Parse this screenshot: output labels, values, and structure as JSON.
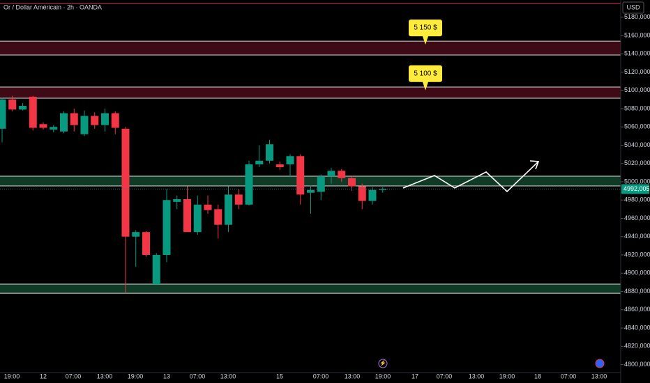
{
  "chart_data": {
    "type": "candlestick",
    "title": "Or / Dollar Américain · 2h · OANDA",
    "currency": "USD",
    "open": [
      5058,
      5090,
      5079,
      5093,
      5063,
      5057,
      5055,
      5075,
      5052,
      5072,
      5062,
      5075,
      5058,
      4940,
      4945,
      4888,
      4920,
      4978,
      4981,
      4945,
      4975,
      4970,
      4953,
      4986,
      4975,
      5019,
      5023,
      5019,
      5019,
      5028,
      4988,
      4989,
      5006,
      5012,
      5004,
      4995,
      4979,
      4991
    ],
    "high": [
      5092,
      5094,
      5086,
      5094,
      5065,
      5062,
      5077,
      5080,
      5078,
      5076,
      5080,
      5077,
      5060,
      4947,
      4946,
      4922,
      4992,
      4985,
      4995,
      4985,
      4985,
      4975,
      4995,
      4992,
      5023,
      5040,
      5046,
      5022,
      5030,
      5030,
      4996,
      5008,
      5015,
      5014,
      5006,
      4998,
      4994,
      4994
    ],
    "low": [
      5043,
      5077,
      5078,
      5056,
      5057,
      5054,
      5053,
      5055,
      5050,
      5058,
      5055,
      5052,
      4879,
      4907,
      4918,
      4887,
      4912,
      4970,
      4945,
      4942,
      4965,
      4938,
      4945,
      4970,
      4974,
      5016,
      5020,
      5013,
      5005,
      4975,
      4965,
      4980,
      4998,
      5000,
      4990,
      4970,
      4975,
      4988
    ],
    "close": [
      5090,
      5079,
      5083,
      5059,
      5059,
      5060,
      5075,
      5062,
      5072,
      5062,
      5075,
      5059,
      4940,
      4945,
      4920,
      4920,
      4980,
      4981,
      4945,
      4975,
      4969,
      4953,
      4986,
      4975,
      5019,
      5023,
      5041,
      5016,
      5028,
      4986,
      4991,
      5006,
      5012,
      5004,
      4995,
      4979,
      4991,
      4992
    ],
    "up_color": "#089981",
    "down_color": "#f23645",
    "ylim": [
      4791.3,
      5198.8
    ],
    "yticks": [
      {
        "value": 4800,
        "label": "4800,000"
      },
      {
        "value": 4820,
        "label": "4820,000"
      },
      {
        "value": 4840,
        "label": "4840,000"
      },
      {
        "value": 4860,
        "label": "4860,000"
      },
      {
        "value": 4880,
        "label": "4880,000"
      },
      {
        "value": 4900,
        "label": "4900,000"
      },
      {
        "value": 4920,
        "label": "4920,000"
      },
      {
        "value": 4940,
        "label": "4940,000"
      },
      {
        "value": 4960,
        "label": "4960,000"
      },
      {
        "value": 4980,
        "label": "4980,000"
      },
      {
        "value": 5000,
        "label": "5000,000"
      },
      {
        "value": 5020,
        "label": "5020,000"
      },
      {
        "value": 5040,
        "label": "5040,000"
      },
      {
        "value": 5060,
        "label": "5060,000"
      },
      {
        "value": 5080,
        "label": "5080,000"
      },
      {
        "value": 5100,
        "label": "5100,000"
      },
      {
        "value": 5120,
        "label": "5120,000"
      },
      {
        "value": 5140,
        "label": "5140,000"
      },
      {
        "value": 5160,
        "label": "5160,000"
      },
      {
        "value": 5180,
        "label": "5180,000"
      }
    ],
    "xticks": [
      "19:00",
      "12",
      "07:00",
      "13:00",
      "19:00",
      "13",
      "07:00",
      "13:00",
      "15",
      "07:00",
      "13:00",
      "19:00",
      "17",
      "07:00",
      "13:00",
      "19:00",
      "18",
      "07:00",
      "13:00"
    ],
    "last_price": {
      "value": 4992.005,
      "label": "4992,005"
    },
    "zones": [
      {
        "low": 5138.6,
        "high": 5153.8,
        "color": "#3d0a16"
      },
      {
        "low": 5091.4,
        "high": 5103.6,
        "color": "#3d0a16"
      },
      {
        "low": 4995.4,
        "high": 5006.1,
        "color": "#0f3b26"
      },
      {
        "low": 4878,
        "high": 4888,
        "color": "#0f3b26"
      }
    ],
    "level_line": {
      "value": 5195,
      "color": "#8a2a3a"
    },
    "annotations": [
      {
        "text": "5 150 $",
        "value": 5150
      },
      {
        "text": "5 100 $",
        "value": 5100
      }
    ]
  }
}
